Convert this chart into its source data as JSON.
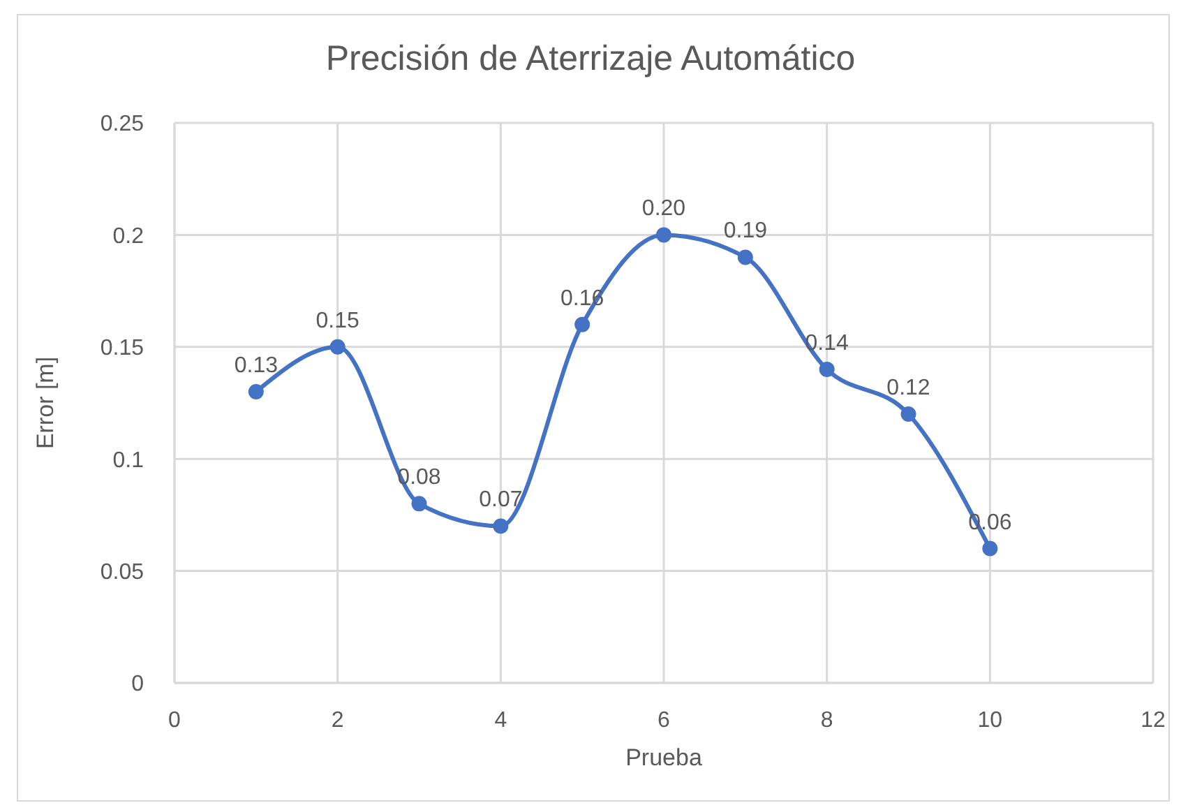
{
  "chart_data": {
    "type": "line",
    "title": "Precisión de Aterrizaje Automático",
    "xlabel": "Prueba",
    "ylabel": "Error [m]",
    "x": [
      1,
      2,
      3,
      4,
      5,
      6,
      7,
      8,
      9,
      10
    ],
    "values": [
      0.13,
      0.15,
      0.08,
      0.07,
      0.16,
      0.2,
      0.19,
      0.14,
      0.12,
      0.06
    ],
    "value_labels": [
      "0.13",
      "0.15",
      "0.08",
      "0.07",
      "0.16",
      "0.20",
      "0.19",
      "0.14",
      "0.12",
      "0.06"
    ],
    "color": "#4472c4",
    "xlim": [
      0,
      12
    ],
    "xticks": [
      0,
      2,
      4,
      6,
      8,
      10,
      12
    ],
    "ylim": [
      0,
      0.25
    ],
    "yticks": [
      0,
      0.05,
      0.1,
      0.15,
      0.2,
      0.25
    ],
    "grid": true,
    "marker": "circle",
    "line_style": "solid"
  }
}
